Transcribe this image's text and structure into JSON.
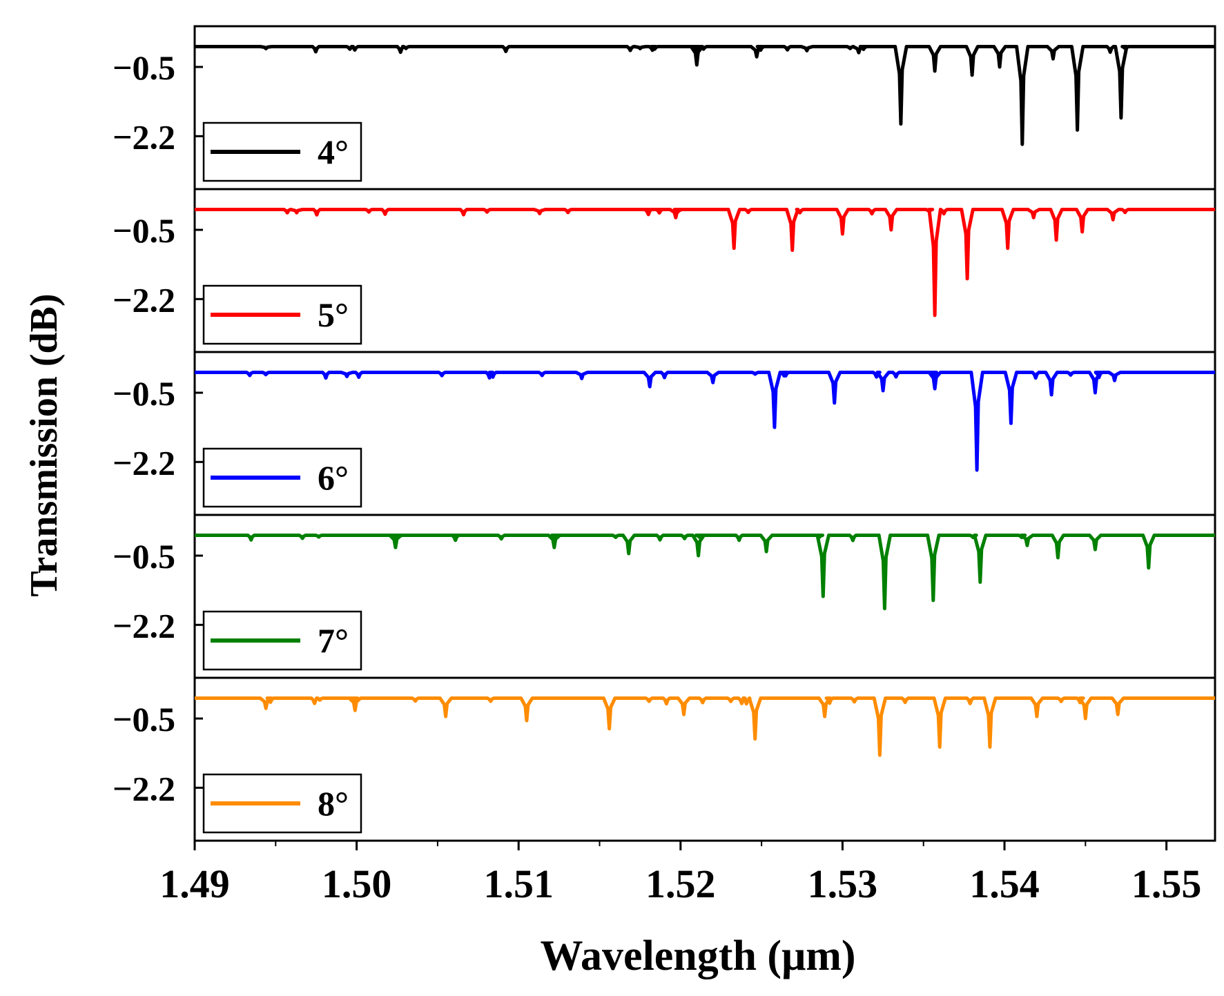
{
  "chart_data": {
    "type": "line",
    "title": "",
    "xlabel": "Wavelength (μm)",
    "ylabel": "Transmission (dB)",
    "xlim": [
      1.49,
      1.553
    ],
    "ylim_per_panel": [
      -3.5,
      0.5
    ],
    "baseline_db": 0,
    "x_ticks": [
      "1.49",
      "1.50",
      "1.51",
      "1.52",
      "1.53",
      "1.54",
      "1.55"
    ],
    "x_tick_values": [
      1.49,
      1.5,
      1.51,
      1.52,
      1.53,
      1.54,
      1.55
    ],
    "y_ticks": [
      "−0.5",
      "−2.2"
    ],
    "y_tick_values": [
      -0.5,
      -2.2
    ],
    "legend_placement": "lower-left of each panel",
    "series": [
      {
        "name": "4°",
        "color": "#000000",
        "dips": [
          {
            "x": 1.4944,
            "depth": -0.05
          },
          {
            "x": 1.5175,
            "depth": -0.05
          },
          {
            "x": 1.521,
            "depth": -0.45
          },
          {
            "x": 1.5247,
            "depth": -0.25
          },
          {
            "x": 1.5278,
            "depth": -0.1
          },
          {
            "x": 1.531,
            "depth": -0.15
          },
          {
            "x": 1.5336,
            "depth": -1.9
          },
          {
            "x": 1.5357,
            "depth": -0.6
          },
          {
            "x": 1.538,
            "depth": -0.7
          },
          {
            "x": 1.5397,
            "depth": -0.5
          },
          {
            "x": 1.5411,
            "depth": -2.4
          },
          {
            "x": 1.543,
            "depth": -0.3
          },
          {
            "x": 1.5445,
            "depth": -2.05
          },
          {
            "x": 1.5472,
            "depth": -1.75
          }
        ]
      },
      {
        "name": "5°",
        "color": "#ff0000",
        "dips": [
          {
            "x": 1.4963,
            "depth": -0.08
          },
          {
            "x": 1.5113,
            "depth": -0.1
          },
          {
            "x": 1.5197,
            "depth": -0.2
          },
          {
            "x": 1.5233,
            "depth": -0.95
          },
          {
            "x": 1.5269,
            "depth": -1.0
          },
          {
            "x": 1.53,
            "depth": -0.6
          },
          {
            "x": 1.533,
            "depth": -0.5
          },
          {
            "x": 1.5357,
            "depth": -2.6
          },
          {
            "x": 1.5377,
            "depth": -1.7
          },
          {
            "x": 1.5402,
            "depth": -0.95
          },
          {
            "x": 1.5418,
            "depth": -0.2
          },
          {
            "x": 1.5432,
            "depth": -0.75
          },
          {
            "x": 1.5448,
            "depth": -0.55
          },
          {
            "x": 1.5467,
            "depth": -0.25
          }
        ]
      },
      {
        "name": "6°",
        "color": "#0000ff",
        "dips": [
          {
            "x": 1.4994,
            "depth": -0.1
          },
          {
            "x": 1.5139,
            "depth": -0.15
          },
          {
            "x": 1.5181,
            "depth": -0.35
          },
          {
            "x": 1.522,
            "depth": -0.25
          },
          {
            "x": 1.5258,
            "depth": -1.35
          },
          {
            "x": 1.5295,
            "depth": -0.75
          },
          {
            "x": 1.5325,
            "depth": -0.45
          },
          {
            "x": 1.5357,
            "depth": -0.4
          },
          {
            "x": 1.5383,
            "depth": -2.4
          },
          {
            "x": 1.5404,
            "depth": -1.25
          },
          {
            "x": 1.5429,
            "depth": -0.55
          },
          {
            "x": 1.5456,
            "depth": -0.5
          },
          {
            "x": 1.5468,
            "depth": -0.2
          }
        ]
      },
      {
        "name": "7°",
        "color": "#008000",
        "dips": [
          {
            "x": 1.5024,
            "depth": -0.3
          },
          {
            "x": 1.5122,
            "depth": -0.3
          },
          {
            "x": 1.5168,
            "depth": -0.45
          },
          {
            "x": 1.5211,
            "depth": -0.5
          },
          {
            "x": 1.5253,
            "depth": -0.4
          },
          {
            "x": 1.5288,
            "depth": -1.5
          },
          {
            "x": 1.5326,
            "depth": -1.8
          },
          {
            "x": 1.5356,
            "depth": -1.6
          },
          {
            "x": 1.5385,
            "depth": -1.15
          },
          {
            "x": 1.5414,
            "depth": -0.25
          },
          {
            "x": 1.5433,
            "depth": -0.55
          },
          {
            "x": 1.5456,
            "depth": -0.35
          },
          {
            "x": 1.5489,
            "depth": -0.8
          }
        ]
      },
      {
        "name": "8°",
        "color": "#ff8c00",
        "dips": [
          {
            "x": 1.4944,
            "depth": -0.25
          },
          {
            "x": 1.4999,
            "depth": -0.3
          },
          {
            "x": 1.5055,
            "depth": -0.45
          },
          {
            "x": 1.5105,
            "depth": -0.55
          },
          {
            "x": 1.5156,
            "depth": -0.75
          },
          {
            "x": 1.5202,
            "depth": -0.4
          },
          {
            "x": 1.5246,
            "depth": -1.0
          },
          {
            "x": 1.5289,
            "depth": -0.45
          },
          {
            "x": 1.5323,
            "depth": -1.4
          },
          {
            "x": 1.536,
            "depth": -1.2
          },
          {
            "x": 1.5391,
            "depth": -1.2
          },
          {
            "x": 1.542,
            "depth": -0.45
          },
          {
            "x": 1.545,
            "depth": -0.5
          },
          {
            "x": 1.547,
            "depth": -0.4
          }
        ]
      }
    ]
  }
}
